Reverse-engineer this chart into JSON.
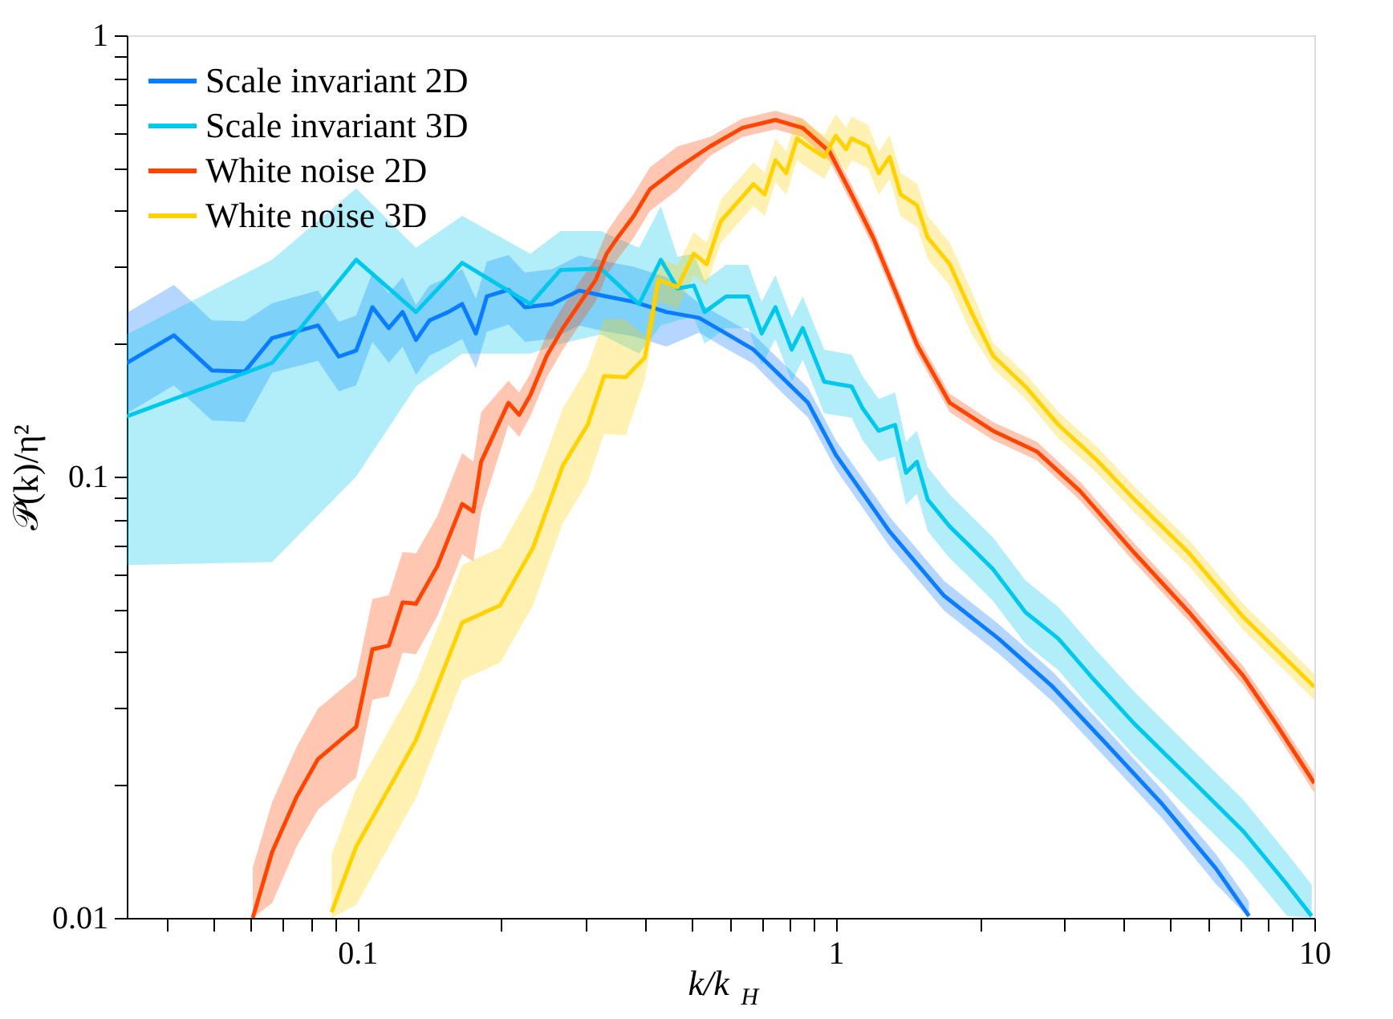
{
  "chart_data": {
    "type": "line",
    "xlabel": "k/k$_{H}$",
    "ylabel": "𝒫(k)/η²",
    "log": "xy",
    "legend": "top left",
    "grid": false,
    "line_style": "solid",
    "marker": "none",
    "xlim": [
      0.033,
      10
    ],
    "ylim": [
      0.01,
      1
    ],
    "xticks": [
      {
        "value": 0.04,
        "label": null
      },
      {
        "value": 0.05,
        "label": null
      },
      {
        "value": 0.06,
        "label": null
      },
      {
        "value": 0.07,
        "label": null
      },
      {
        "value": 0.08,
        "label": null
      },
      {
        "value": 0.09,
        "label": null
      },
      0.1,
      {
        "value": 0.2,
        "label": null
      },
      {
        "value": 0.3,
        "label": null
      },
      {
        "value": 0.4,
        "label": null
      },
      {
        "value": 0.5,
        "label": null
      },
      {
        "value": 0.6,
        "label": null
      },
      {
        "value": 0.7,
        "label": null
      },
      {
        "value": 0.8,
        "label": null
      },
      {
        "value": 0.9,
        "label": null
      },
      1,
      {
        "value": 2,
        "label": null
      },
      {
        "value": 3,
        "label": null
      },
      {
        "value": 4,
        "label": null
      },
      {
        "value": 5,
        "label": null
      },
      {
        "value": 6,
        "label": null
      },
      {
        "value": 7,
        "label": null
      },
      {
        "value": 8,
        "label": null
      },
      {
        "value": 9,
        "label": null
      },
      10
    ],
    "yticks": [
      0.01,
      {
        "value": 0.02,
        "label": null
      },
      {
        "value": 0.03,
        "label": null
      },
      {
        "value": 0.04,
        "label": null
      },
      {
        "value": 0.05,
        "label": null
      },
      {
        "value": 0.06,
        "label": null
      },
      {
        "value": 0.07,
        "label": null
      },
      {
        "value": 0.08,
        "label": null
      },
      {
        "value": 0.09,
        "label": null
      },
      0.1,
      {
        "value": 0.2,
        "label": null
      },
      {
        "value": 0.3,
        "label": null
      },
      {
        "value": 0.4,
        "label": null
      },
      {
        "value": 0.5,
        "label": null
      },
      {
        "value": 0.6,
        "label": null
      },
      {
        "value": 0.7,
        "label": null
      },
      {
        "value": 0.8,
        "label": null
      },
      {
        "value": 0.9,
        "label": null
      },
      1
    ],
    "series": [
      {
        "name": "Scale invariant 2D",
        "color": "#0a7cff",
        "x": [
          0.033,
          0.0414,
          0.0497,
          0.0582,
          0.0664,
          0.0828,
          0.0915,
          0.0995,
          0.1076,
          0.1164,
          0.1244,
          0.1327,
          0.1416,
          0.155,
          0.1657,
          0.177,
          0.1866,
          0.207,
          0.224,
          0.255,
          0.291,
          0.332,
          0.378,
          0.443,
          0.518,
          0.59,
          0.673,
          0.767,
          0.875,
          1.0,
          1.296,
          1.684,
          2.19,
          2.84,
          3.7,
          4.81,
          6.24,
          7.3
        ],
        "values": [
          0.181,
          0.209,
          0.174,
          0.173,
          0.206,
          0.22,
          0.187,
          0.193,
          0.242,
          0.217,
          0.236,
          0.204,
          0.226,
          0.236,
          0.246,
          0.211,
          0.256,
          0.265,
          0.242,
          0.246,
          0.264,
          0.256,
          0.249,
          0.236,
          0.229,
          0.211,
          0.194,
          0.169,
          0.147,
          0.112,
          0.075,
          0.0537,
          0.0429,
          0.0334,
          0.0246,
          0.0181,
          0.0129,
          0.0101
        ],
        "lower": [
          0.139,
          0.161,
          0.134,
          0.133,
          0.172,
          0.183,
          0.156,
          0.161,
          0.202,
          0.181,
          0.197,
          0.17,
          0.188,
          0.197,
          0.205,
          0.176,
          0.213,
          0.221,
          0.202,
          0.205,
          0.22,
          0.213,
          0.208,
          0.197,
          0.212,
          0.195,
          0.18,
          0.156,
          0.136,
          0.104,
          0.0694,
          0.0497,
          0.0397,
          0.0309,
          0.0228,
          0.0168,
          0.0119,
          0.01
        ],
        "upper": [
          0.235,
          0.272,
          0.226,
          0.225,
          0.247,
          0.264,
          0.224,
          0.232,
          0.29,
          0.26,
          0.283,
          0.245,
          0.271,
          0.283,
          0.295,
          0.253,
          0.307,
          0.318,
          0.29,
          0.295,
          0.317,
          0.307,
          0.299,
          0.283,
          0.247,
          0.228,
          0.21,
          0.183,
          0.159,
          0.121,
          0.081,
          0.058,
          0.0463,
          0.0361,
          0.0266,
          0.0195,
          0.0139,
          0.0109
        ]
      },
      {
        "name": "Scale invariant 3D",
        "color": "#00c8ec",
        "x": [
          0.033,
          0.0664,
          0.0995,
          0.1327,
          0.1657,
          0.23,
          0.266,
          0.323,
          0.388,
          0.431,
          0.467,
          0.505,
          0.532,
          0.59,
          0.656,
          0.7,
          0.748,
          0.809,
          0.853,
          0.946,
          1.079,
          1.137,
          1.229,
          1.33,
          1.402,
          1.478,
          1.556,
          1.73,
          1.92,
          2.13,
          2.49,
          2.92,
          3.41,
          4.21,
          5.47,
          7.11,
          8.77,
          9.87
        ],
        "values": [
          0.137,
          0.181,
          0.31,
          0.236,
          0.305,
          0.246,
          0.294,
          0.296,
          0.246,
          0.31,
          0.267,
          0.271,
          0.236,
          0.256,
          0.256,
          0.211,
          0.242,
          0.194,
          0.217,
          0.164,
          0.16,
          0.143,
          0.127,
          0.131,
          0.102,
          0.108,
          0.0887,
          0.0771,
          0.069,
          0.0617,
          0.0493,
          0.0429,
          0.0353,
          0.0275,
          0.0208,
          0.0157,
          0.0119,
          0.0101
        ],
        "lower": [
          0.063,
          0.064,
          0.1,
          0.16,
          0.19,
          0.19,
          0.2,
          0.21,
          0.19,
          0.22,
          0.226,
          0.23,
          0.2,
          0.217,
          0.217,
          0.179,
          0.205,
          0.164,
          0.184,
          0.139,
          0.136,
          0.121,
          0.108,
          0.111,
          0.0864,
          0.0915,
          0.0752,
          0.0653,
          0.0585,
          0.0523,
          0.0418,
          0.0364,
          0.0299,
          0.0233,
          0.0176,
          0.0133,
          0.0101,
          0.01
        ],
        "upper": [
          0.21,
          0.31,
          0.45,
          0.33,
          0.39,
          0.32,
          0.36,
          0.36,
          0.33,
          0.41,
          0.315,
          0.32,
          0.278,
          0.302,
          0.302,
          0.249,
          0.286,
          0.229,
          0.256,
          0.194,
          0.189,
          0.169,
          0.15,
          0.155,
          0.12,
          0.127,
          0.105,
          0.091,
          0.0814,
          0.0728,
          0.0582,
          0.0506,
          0.0417,
          0.0325,
          0.0245,
          0.0185,
          0.014,
          0.0119
        ]
      },
      {
        "name": "White noise 2D",
        "color": "#ff4500",
        "x": [
          0.0605,
          0.0664,
          0.0747,
          0.0828,
          0.0995,
          0.1076,
          0.1164,
          0.1244,
          0.1327,
          0.147,
          0.1657,
          0.1748,
          0.1815,
          0.207,
          0.218,
          0.23,
          0.249,
          0.269,
          0.291,
          0.315,
          0.332,
          0.35,
          0.378,
          0.409,
          0.467,
          0.546,
          0.638,
          0.748,
          0.853,
          0.971,
          1.079,
          1.197,
          1.33,
          1.478,
          1.73,
          2.13,
          2.63,
          3.24,
          4.21,
          5.47,
          7.11,
          8.32,
          10
        ],
        "values": [
          0.01,
          0.0141,
          0.0188,
          0.0229,
          0.0271,
          0.0406,
          0.0414,
          0.0519,
          0.0515,
          0.0626,
          0.0867,
          0.0834,
          0.108,
          0.147,
          0.138,
          0.153,
          0.188,
          0.217,
          0.246,
          0.279,
          0.32,
          0.348,
          0.389,
          0.448,
          0.5,
          0.56,
          0.617,
          0.643,
          0.617,
          0.544,
          0.436,
          0.348,
          0.264,
          0.199,
          0.147,
          0.127,
          0.114,
          0.0927,
          0.0671,
          0.0493,
          0.0353,
          0.0275,
          0.0202
        ],
        "lower": [
          0.01,
          0.0108,
          0.0145,
          0.0176,
          0.0208,
          0.0312,
          0.0318,
          0.0399,
          0.0396,
          0.0482,
          0.0667,
          0.0642,
          0.0831,
          0.131,
          0.123,
          0.137,
          0.168,
          0.194,
          0.22,
          0.249,
          0.286,
          0.311,
          0.347,
          0.4,
          0.446,
          0.533,
          0.588,
          0.612,
          0.588,
          0.518,
          0.415,
          0.331,
          0.251,
          0.19,
          0.14,
          0.121,
          0.109,
          0.0883,
          0.0639,
          0.047,
          0.0336,
          0.0262,
          0.0192
        ],
        "upper": [
          0.013,
          0.0183,
          0.0244,
          0.0298,
          0.0352,
          0.0528,
          0.0538,
          0.0675,
          0.067,
          0.0814,
          0.113,
          0.108,
          0.14,
          0.165,
          0.155,
          0.171,
          0.211,
          0.243,
          0.276,
          0.312,
          0.358,
          0.39,
          0.436,
          0.502,
          0.56,
          0.588,
          0.648,
          0.675,
          0.648,
          0.571,
          0.458,
          0.365,
          0.277,
          0.209,
          0.154,
          0.133,
          0.12,
          0.0973,
          0.0705,
          0.0518,
          0.0371,
          0.0289,
          0.0212
        ]
      },
      {
        "name": "White noise 3D",
        "color": "#ffd200",
        "x": [
          0.0884,
          0.0995,
          0.1327,
          0.1657,
          0.199,
          0.233,
          0.269,
          0.303,
          0.328,
          0.364,
          0.399,
          0.426,
          0.467,
          0.505,
          0.537,
          0.575,
          0.673,
          0.71,
          0.748,
          0.788,
          0.83,
          0.875,
          0.946,
          1.0,
          1.051,
          1.079,
          1.167,
          1.229,
          1.296,
          1.366,
          1.478,
          1.556,
          1.73,
          1.92,
          2.13,
          2.49,
          2.92,
          3.51,
          4.21,
          5.47,
          7.11,
          10
        ],
        "values": [
          0.0103,
          0.0145,
          0.0253,
          0.0467,
          0.0511,
          0.069,
          0.106,
          0.131,
          0.169,
          0.168,
          0.186,
          0.279,
          0.269,
          0.32,
          0.303,
          0.379,
          0.46,
          0.436,
          0.521,
          0.487,
          0.584,
          0.56,
          0.53,
          0.592,
          0.552,
          0.584,
          0.56,
          0.487,
          0.53,
          0.436,
          0.412,
          0.348,
          0.303,
          0.236,
          0.188,
          0.16,
          0.131,
          0.109,
          0.0887,
          0.0671,
          0.048,
          0.0334
        ],
        "lower": [
          0.01,
          0.0107,
          0.0187,
          0.0346,
          0.0379,
          0.0511,
          0.0785,
          0.097,
          0.125,
          0.124,
          0.166,
          0.249,
          0.24,
          0.286,
          0.271,
          0.338,
          0.411,
          0.389,
          0.465,
          0.435,
          0.521,
          0.5,
          0.473,
          0.529,
          0.493,
          0.521,
          0.5,
          0.435,
          0.473,
          0.389,
          0.368,
          0.311,
          0.271,
          0.211,
          0.176,
          0.15,
          0.122,
          0.102,
          0.0829,
          0.0627,
          0.0449,
          0.0312
        ],
        "upper": [
          0.0139,
          0.0196,
          0.0342,
          0.063,
          0.069,
          0.0932,
          0.143,
          0.177,
          0.228,
          0.227,
          0.208,
          0.312,
          0.301,
          0.358,
          0.339,
          0.424,
          0.515,
          0.488,
          0.584,
          0.545,
          0.654,
          0.627,
          0.594,
          0.663,
          0.618,
          0.654,
          0.627,
          0.545,
          0.594,
          0.488,
          0.461,
          0.39,
          0.339,
          0.264,
          0.201,
          0.171,
          0.14,
          0.117,
          0.0949,
          0.0718,
          0.0514,
          0.0357
        ]
      }
    ]
  }
}
